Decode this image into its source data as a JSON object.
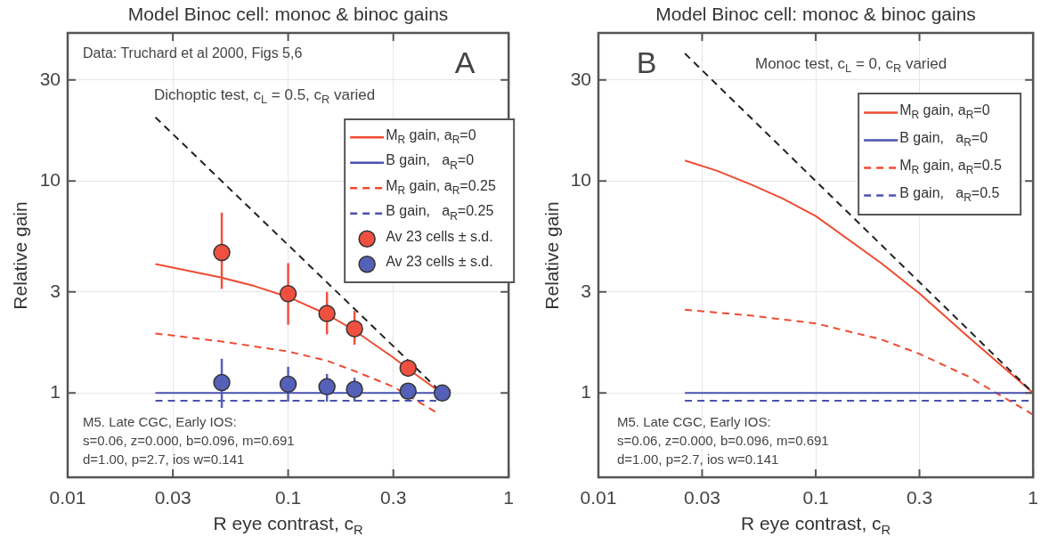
{
  "chart_data": [
    {
      "type": "line",
      "title": "Model Binoc cell: monoc & binoc gains",
      "xlabel": "R eye contrast, c$_{R}$",
      "ylabel": "Relative gain",
      "annotations": [
        "Data: Truchard et al 2000, Figs 5,6",
        "A",
        "Dichoptic test, c$_{L}$ = 0.5, c$_{R}$ varied",
        "M5. Late CGC, Early IOS:",
        "s=0.06, z=0.000, b=0.096, m=0.691",
        "d=1.00, p=2.7, ios w=0.141"
      ],
      "log": "xy",
      "grid": true,
      "legend": "top right",
      "xlim": [
        0.01,
        1
      ],
      "xticks": [
        0.01,
        0.03,
        0.1,
        0.3,
        1
      ],
      "ylim": [
        0.4,
        50
      ],
      "yticks": [
        1,
        3,
        10,
        30
      ],
      "series": [
        {
          "color": "#222222",
          "line_style": "dashed",
          "marker": "none",
          "x": [
            0.025,
            0.47
          ],
          "values": [
            20,
            1.06
          ]
        },
        {
          "name": "M$_{R}$ gain, a$_{R}$=0",
          "color": "#f04a32",
          "line_style": "solid",
          "marker": "none",
          "x": [
            0.025,
            0.05,
            0.07,
            0.1,
            0.15,
            0.2,
            0.3,
            0.35,
            0.47
          ],
          "values": [
            4.06,
            3.5,
            3.2,
            2.84,
            2.35,
            1.97,
            1.47,
            1.3,
            1.04
          ]
        },
        {
          "name": "B gain,   a$_{R}$=0",
          "color": "#4a52b0",
          "line_style": "solid",
          "marker": "none",
          "x": [
            0.025,
            0.5
          ],
          "values": [
            1,
            1
          ]
        },
        {
          "name": "M$_{R}$ gain, a$_{R}$=0.25",
          "color": "#f04a32",
          "line_style": "dashed",
          "marker": "none",
          "x": [
            0.025,
            0.05,
            0.1,
            0.15,
            0.2,
            0.3,
            0.47
          ],
          "values": [
            1.91,
            1.75,
            1.57,
            1.42,
            1.27,
            1.07,
            0.81
          ]
        },
        {
          "name": "B gain,   a$_{R}$=0.25",
          "color": "#4a52b0",
          "line_style": "dashed",
          "marker": "none",
          "x": [
            0.025,
            0.47
          ],
          "values": [
            0.92,
            0.92
          ]
        },
        {
          "name": "Av 23 cells ± s.d.",
          "color": "#f05040",
          "type": "scatter",
          "marker": "circle",
          "x": [
            0.05,
            0.1,
            0.15,
            0.2,
            0.35
          ],
          "values": [
            4.6,
            2.94,
            2.37,
            2.01,
            1.31
          ],
          "errors": [
            [
              3.1,
              7.1
            ],
            [
              2.1,
              4.1
            ],
            [
              1.89,
              3.0
            ],
            [
              1.69,
              2.44
            ],
            null
          ]
        },
        {
          "name": "Av 23 cells ± s.d.",
          "color": "#5560b8",
          "type": "scatter",
          "marker": "circle",
          "x": [
            0.05,
            0.1,
            0.15,
            0.2,
            0.35,
            0.5
          ],
          "values": [
            1.12,
            1.1,
            1.07,
            1.04,
            1.02,
            1.0
          ],
          "errors": [
            [
              0.85,
              1.45
            ],
            [
              0.91,
              1.33
            ],
            [
              0.91,
              1.23
            ],
            [
              0.91,
              1.18
            ],
            null,
            null
          ]
        }
      ]
    },
    {
      "type": "line",
      "title": "Model Binoc cell: monoc & binoc gains",
      "xlabel": "R eye contrast, c$_{R}$",
      "ylabel": "Relative gain",
      "annotations": [
        "B",
        "Monoc test, c$_{L}$ = 0, c$_{R}$ varied",
        "M5. Late CGC, Early IOS:",
        "s=0.06, z=0.000, b=0.096, m=0.691",
        "d=1.00, p=2.7, ios w=0.141"
      ],
      "log": "xy",
      "grid": true,
      "legend": "top right",
      "xlim": [
        0.01,
        1
      ],
      "xticks": [
        0.01,
        0.03,
        0.1,
        0.3,
        1
      ],
      "ylim": [
        0.4,
        50
      ],
      "yticks": [
        1,
        3,
        10,
        30
      ],
      "series": [
        {
          "color": "#222222",
          "line_style": "dashed",
          "marker": "none",
          "x": [
            0.025,
            1
          ],
          "values": [
            40,
            1
          ]
        },
        {
          "name": "M$_{R}$ gain, a$_{R}$=0",
          "color": "#f04a32",
          "line_style": "solid",
          "marker": "none",
          "x": [
            0.025,
            0.035,
            0.05,
            0.07,
            0.1,
            0.2,
            0.3,
            0.5,
            1
          ],
          "values": [
            12.5,
            11.2,
            9.66,
            8.3,
            6.84,
            4.1,
            2.95,
            1.85,
            1.0
          ]
        },
        {
          "name": "B gain,   a$_{R}$=0",
          "color": "#4a52b0",
          "line_style": "solid",
          "marker": "none",
          "x": [
            0.025,
            1
          ],
          "values": [
            1,
            1
          ]
        },
        {
          "name": "M$_{R}$ gain, a$_{R}$=0.5",
          "color": "#f04a32",
          "line_style": "dashed",
          "marker": "none",
          "x": [
            0.025,
            0.05,
            0.1,
            0.2,
            0.3,
            0.5,
            0.7,
            1
          ],
          "values": [
            2.47,
            2.32,
            2.13,
            1.79,
            1.53,
            1.2,
            0.98,
            0.79
          ]
        },
        {
          "name": "B gain,   a$_{R}$=0.5",
          "color": "#4a52b0",
          "line_style": "dashed",
          "marker": "none",
          "x": [
            0.025,
            1
          ],
          "values": [
            0.92,
            0.92
          ]
        }
      ]
    }
  ]
}
